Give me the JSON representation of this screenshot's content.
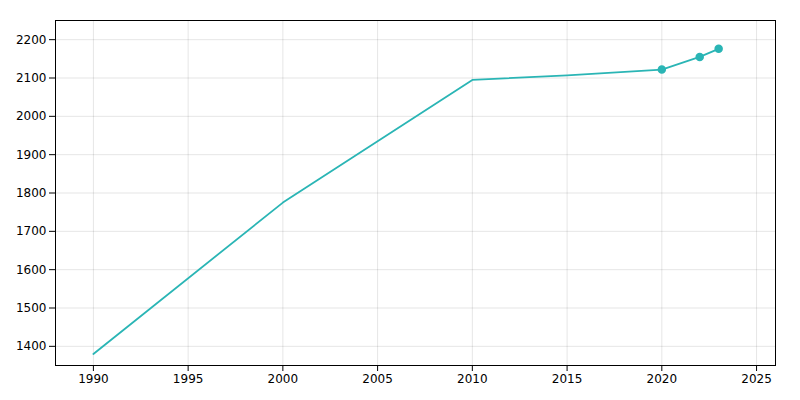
{
  "chart_data": {
    "type": "line",
    "x": [
      1990,
      2000,
      2010,
      2015,
      2020,
      2022,
      2023
    ],
    "values": [
      1380,
      1775,
      2095,
      2107,
      2122,
      2155,
      2176
    ],
    "color": "#2ab5b5",
    "marker": "circle",
    "marker_x": [
      2020,
      2022,
      2023
    ],
    "xlim": [
      1988,
      2026
    ],
    "ylim": [
      1350,
      2250
    ],
    "xticks": [
      1990,
      1995,
      2000,
      2005,
      2010,
      2015,
      2020,
      2025
    ],
    "yticks": [
      1400,
      1500,
      1600,
      1700,
      1800,
      1900,
      2000,
      2100,
      2200
    ],
    "grid": true
  }
}
